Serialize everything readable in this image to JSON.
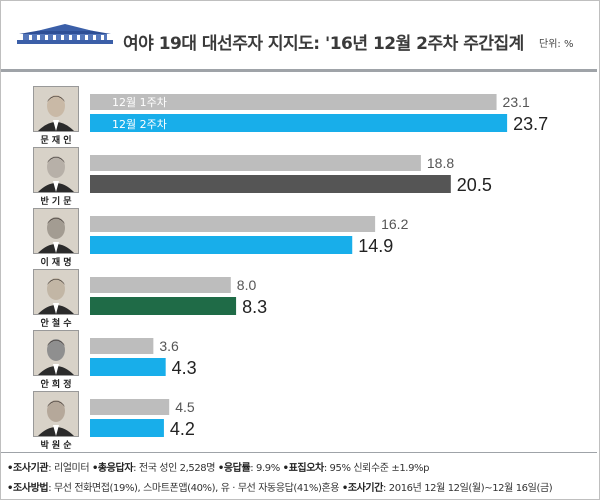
{
  "header": {
    "title": "여야 19대 대선주자 지지도: '16년 12월 2주차 주간집계",
    "unit": "단위: %"
  },
  "colors": {
    "week1": "#bdbdbd",
    "highlight_blue": "#18aeea",
    "ban_dark": "#555555",
    "ahn_green": "#1f6b47"
  },
  "chart_data": {
    "type": "bar",
    "orientation": "horizontal",
    "categories": [
      "문재인",
      "반기문",
      "이재명",
      "안철수",
      "안희정",
      "박원순"
    ],
    "series": [
      {
        "name": "12월 1주차",
        "values": [
          23.1,
          18.8,
          16.2,
          8.0,
          3.6,
          4.5
        ]
      },
      {
        "name": "12월 2주차",
        "values": [
          23.7,
          20.5,
          14.9,
          8.3,
          4.3,
          4.2
        ]
      }
    ],
    "bar_colors_week2": [
      "#18aeea",
      "#555555",
      "#18aeea",
      "#1f6b47",
      "#18aeea",
      "#18aeea"
    ],
    "labels_week1": [
      "23.1",
      "18.8",
      "16.2",
      "8.0",
      "3.6",
      "4.5"
    ],
    "labels_week2": [
      "23.7",
      "20.5",
      "14.9",
      "8.3",
      "4.3",
      "4.2"
    ],
    "xlim": [
      0,
      25
    ],
    "legend": "inside-first-bars",
    "grid": false
  },
  "footer": {
    "line1": [
      {
        "label": "조사기관",
        "value": ": 리얼미터"
      },
      {
        "label": "총응답자",
        "value": ": 전국 성인 2,528명"
      },
      {
        "label": "응답률",
        "value": ": 9.9%"
      },
      {
        "label": "표집오차",
        "value": ": 95% 신뢰수준 ±1.9%p"
      }
    ],
    "line2": [
      {
        "label": "조사방법",
        "value": ": 무선 전화면접(19%), 스마트폰앱(40%), 유 · 무선 자동응답(41%)혼용"
      },
      {
        "label": "조사기간",
        "value": ": 2016년 12월 12일(월)~12월 16일(금)"
      }
    ]
  }
}
